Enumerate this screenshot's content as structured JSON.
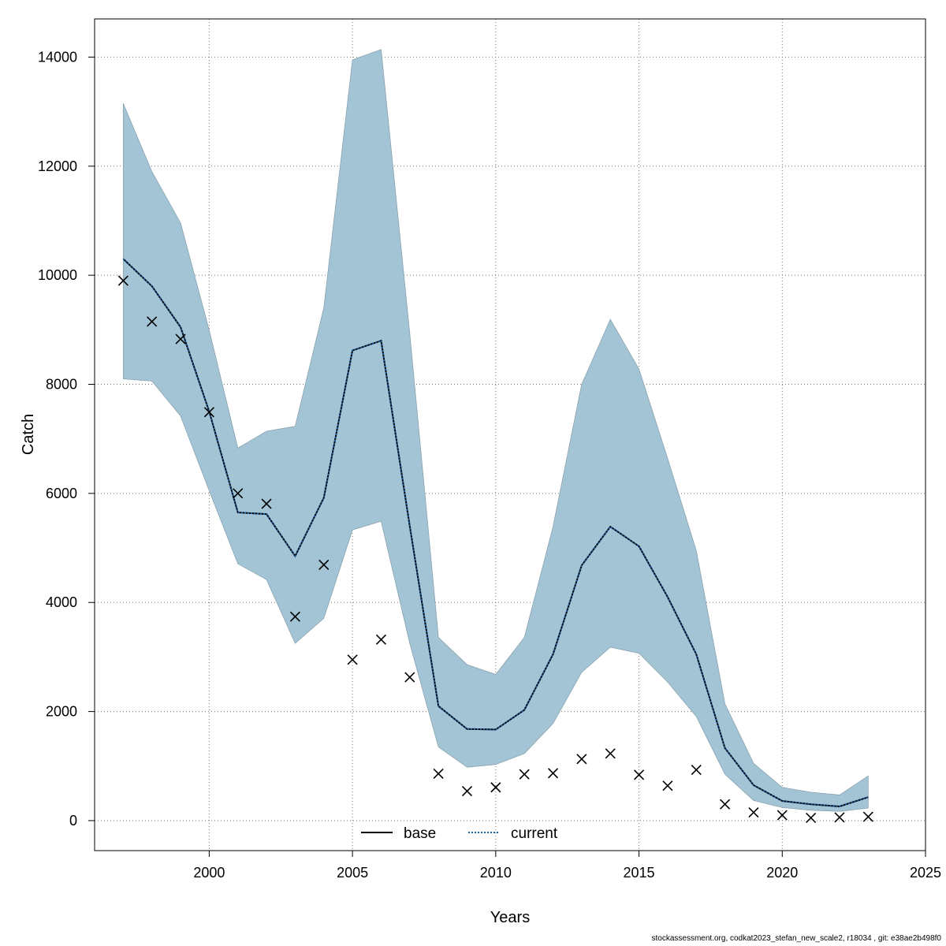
{
  "chart_data": {
    "type": "line",
    "xlabel": "Years",
    "ylabel": "Catch",
    "xlim": [
      1996,
      2025
    ],
    "ylim": [
      -550,
      14700
    ],
    "x_ticks": [
      2000,
      2005,
      2010,
      2015,
      2020,
      2025
    ],
    "y_ticks": [
      0,
      2000,
      4000,
      6000,
      8000,
      10000,
      12000,
      14000
    ],
    "grid": true,
    "legend_position": "bottom-center",
    "years": [
      1997,
      1998,
      1999,
      2000,
      2001,
      2002,
      2003,
      2004,
      2005,
      2006,
      2007,
      2008,
      2009,
      2010,
      2011,
      2012,
      2013,
      2014,
      2015,
      2016,
      2017,
      2018,
      2019,
      2020,
      2021,
      2022,
      2023
    ],
    "series": [
      {
        "name": "base",
        "style": "solid",
        "color": "#000000",
        "values": [
          10300,
          9800,
          9050,
          7500,
          5650,
          5620,
          4850,
          5920,
          8620,
          8800,
          5400,
          2100,
          1680,
          1670,
          2030,
          3050,
          4680,
          5390,
          5030,
          4100,
          3050,
          1330,
          650,
          360,
          300,
          260,
          430
        ]
      },
      {
        "name": "current",
        "style": "dotted",
        "color": "#1f5f9f",
        "values": [
          10300,
          9800,
          9050,
          7500,
          5650,
          5620,
          4850,
          5920,
          8620,
          8800,
          5400,
          2100,
          1680,
          1670,
          2030,
          3050,
          4680,
          5390,
          5030,
          4100,
          3050,
          1330,
          650,
          360,
          300,
          260,
          430
        ]
      }
    ],
    "confidence_band": {
      "color": "#a2c4d5",
      "lower": [
        8100,
        8060,
        7420,
        6050,
        4710,
        4420,
        3250,
        3710,
        5330,
        5490,
        3250,
        1350,
        980,
        1030,
        1230,
        1780,
        2720,
        3180,
        3070,
        2540,
        1910,
        850,
        370,
        240,
        190,
        170,
        230
      ],
      "upper": [
        13150,
        11900,
        10960,
        8990,
        6830,
        7140,
        7230,
        9400,
        13950,
        14140,
        8930,
        3360,
        2860,
        2680,
        3360,
        5390,
        8000,
        9190,
        8280,
        6640,
        4950,
        2140,
        1050,
        610,
        520,
        470,
        820
      ]
    },
    "observed": {
      "marker": "x",
      "values": [
        9900,
        9150,
        8830,
        7490,
        6000,
        5810,
        3740,
        4690,
        2950,
        3320,
        2630,
        860,
        540,
        610,
        850,
        870,
        1130,
        1230,
        840,
        640,
        930,
        300,
        150,
        100,
        50,
        60,
        70
      ]
    }
  },
  "footer": "stockassessment.org, codkat2023_stefan_new_scale2, r18034 , git: e38ae2b498f0"
}
